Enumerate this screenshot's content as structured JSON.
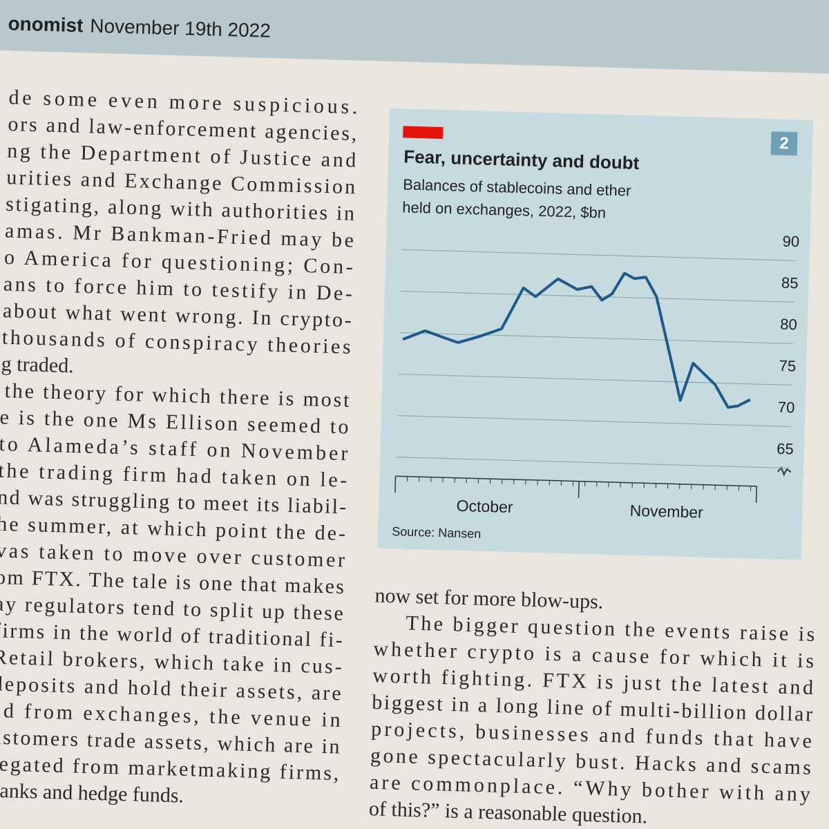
{
  "header": {
    "brand": "onomist",
    "date": "November 19th 2022"
  },
  "left_column": [
    "de some even more suspicious.",
    "ors and law-enforcement agencies,",
    "ng the Department of Justice and",
    "urities and Exchange Commission",
    "stigating, along with authorities in",
    "amas. Mr Bankman-Fried may be",
    "o America for questioning; Con-",
    "ans to force him to testify in De-",
    "about what went wrong. In crypto-",
    "thousands of conspiracy theories",
    "g traded.",
    "the theory for which there is most",
    "e is the one Ms Ellison seemed to",
    "to Alameda’s staff on November",
    "the trading firm had taken on le-",
    "nd was struggling to meet its liabil-",
    "he summer, at which point the de-",
    "vas taken to move over customer",
    "om FTX. The tale is one that makes",
    "ay regulators tend to split up these",
    "firms in the world of traditional fi-",
    "Retail brokers, which take in cus-",
    "deposits and hold their assets, are",
    "ed from exchanges, the venue in",
    "ustomers trade assets, which are in",
    "regated from marketmaking firms,",
    "banks and hedge funds."
  ],
  "right_column": [
    "now set for more blow-ups.",
    "The bigger question the events raise is",
    "whether crypto is a cause for which it is",
    "worth fighting. FTX is just the latest and",
    "biggest in a long line of multi-billion dollar",
    "projects, businesses and funds that have",
    "gone spectacularly bust. Hacks and scams",
    "are commonplace. “Why bother with any",
    "of this?” is a reasonable question."
  ],
  "chart_data": {
    "type": "line",
    "number": "2",
    "title": "Fear, uncertainty and doubt",
    "subtitle": [
      "Balances of stablecoins and ether",
      "held on exchanges, 2022, $bn"
    ],
    "source": "Source: Nansen",
    "x": [
      0.6,
      4.3,
      9.9,
      13.5,
      17.2,
      20.7,
      22.8,
      26.5,
      29.8,
      32.2,
      34.0,
      35.7,
      37.7,
      39.4,
      41.3,
      43.2,
      47.7,
      49.7,
      53.5,
      55.8,
      57.4,
      59.5
    ],
    "values": [
      79.2,
      80.3,
      79.0,
      79.8,
      80.8,
      85.8,
      84.8,
      87.0,
      85.8,
      86.2,
      84.6,
      85.4,
      87.9,
      87.3,
      87.5,
      85.2,
      72.8,
      77.3,
      74.8,
      72.1,
      72.3,
      73.1
    ],
    "color": "#1f5a8a",
    "xlim": [
      0,
      61
    ],
    "xticks": [
      0,
      31,
      61
    ],
    "month_labels": [
      {
        "value": 15.2,
        "label": "October"
      },
      {
        "value": 45.9,
        "label": "November"
      }
    ],
    "ylim": [
      62.7,
      90
    ],
    "yticks": [
      65,
      70,
      75,
      80,
      85,
      90
    ],
    "grid": true
  }
}
